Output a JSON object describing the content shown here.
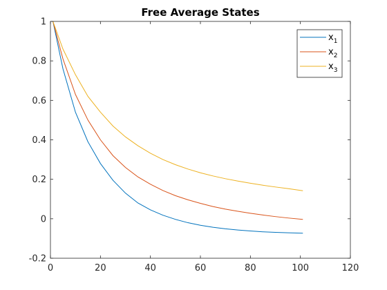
{
  "chart_data": {
    "type": "line",
    "title": "Free Average States",
    "xlabel": "",
    "ylabel": "",
    "xlim": [
      0,
      120
    ],
    "ylim": [
      -0.2,
      1
    ],
    "xticks": [
      0,
      20,
      40,
      60,
      80,
      100,
      120
    ],
    "yticks": [
      -0.2,
      0,
      0.2,
      0.4,
      0.6,
      0.8,
      1
    ],
    "xtick_labels": [
      "0",
      "20",
      "40",
      "60",
      "80",
      "100",
      "120"
    ],
    "ytick_labels": [
      "-0.2",
      "0",
      "0.2",
      "0.4",
      "0.6",
      "0.8",
      "1"
    ],
    "grid": false,
    "legend_position": "top-right",
    "series": [
      {
        "name": "x1",
        "legend_base": "x",
        "legend_sub": "1",
        "color": "#0072BD",
        "x": [
          1,
          5,
          10,
          15,
          20,
          25,
          30,
          35,
          40,
          45,
          50,
          55,
          60,
          65,
          70,
          75,
          80,
          85,
          90,
          95,
          101
        ],
        "y": [
          1.0,
          0.76,
          0.54,
          0.39,
          0.28,
          0.195,
          0.13,
          0.08,
          0.045,
          0.018,
          -0.003,
          -0.02,
          -0.033,
          -0.043,
          -0.051,
          -0.057,
          -0.062,
          -0.066,
          -0.069,
          -0.071,
          -0.073
        ]
      },
      {
        "name": "x2",
        "legend_base": "x",
        "legend_sub": "2",
        "color": "#D95319",
        "x": [
          1,
          5,
          10,
          15,
          20,
          25,
          30,
          35,
          40,
          45,
          50,
          55,
          60,
          65,
          70,
          75,
          80,
          85,
          90,
          95,
          101
        ],
        "y": [
          1.0,
          0.81,
          0.63,
          0.5,
          0.4,
          0.32,
          0.26,
          0.212,
          0.175,
          0.143,
          0.117,
          0.096,
          0.078,
          0.062,
          0.049,
          0.038,
          0.028,
          0.019,
          0.011,
          0.004,
          -0.003
        ]
      },
      {
        "name": "x3",
        "legend_base": "x",
        "legend_sub": "3",
        "color": "#EDB120",
        "x": [
          1,
          5,
          10,
          15,
          20,
          25,
          30,
          35,
          40,
          45,
          50,
          55,
          60,
          65,
          70,
          75,
          80,
          85,
          90,
          95,
          101
        ],
        "y": [
          1.0,
          0.86,
          0.73,
          0.62,
          0.54,
          0.47,
          0.415,
          0.37,
          0.332,
          0.3,
          0.274,
          0.252,
          0.233,
          0.217,
          0.203,
          0.191,
          0.18,
          0.17,
          0.161,
          0.153,
          0.142
        ]
      }
    ]
  }
}
